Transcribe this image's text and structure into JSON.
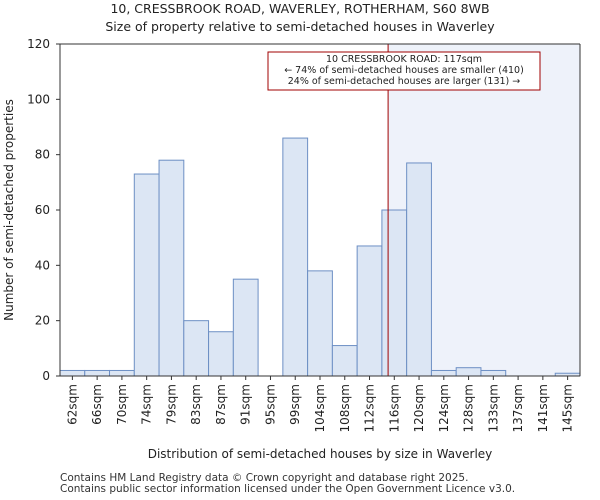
{
  "header": {
    "title": "10, CRESSBROOK ROAD, WAVERLEY, ROTHERHAM, S60 8WB",
    "subtitle": "Size of property relative to semi-detached houses in Waverley"
  },
  "footer": {
    "line1": "Contains HM Land Registry data © Crown copyright and database right 2025.",
    "line2": "Contains public sector information licensed under the Open Government Licence v3.0."
  },
  "chart_data": {
    "type": "bar",
    "title": "10, CRESSBROOK ROAD, WAVERLEY, ROTHERHAM, S60 8WB",
    "subtitle": "Size of property relative to semi-detached houses in Waverley",
    "xlabel": "Distribution of semi-detached houses by size in Waverley",
    "ylabel": "Number of semi-detached properties",
    "ylim": [
      0,
      120
    ],
    "yticks": [
      0,
      20,
      40,
      60,
      80,
      100,
      120
    ],
    "categories": [
      "62sqm",
      "66sqm",
      "70sqm",
      "74sqm",
      "79sqm",
      "83sqm",
      "87sqm",
      "91sqm",
      "95sqm",
      "99sqm",
      "104sqm",
      "108sqm",
      "112sqm",
      "116sqm",
      "120sqm",
      "124sqm",
      "128sqm",
      "133sqm",
      "137sqm",
      "141sqm",
      "145sqm"
    ],
    "values": [
      2,
      2,
      2,
      73,
      78,
      20,
      16,
      35,
      0,
      86,
      38,
      11,
      47,
      60,
      77,
      2,
      3,
      2,
      0,
      0,
      1
    ],
    "marker": {
      "value": 117,
      "value_label": "117sqm",
      "lines": [
        "10 CRESSBROOK ROAD: 117sqm",
        "← 74% of semi-detached houses are smaller (410)",
        "24% of semi-detached houses are larger (131) →"
      ]
    },
    "colors": {
      "bar_fill": "#dce6f4",
      "bar_stroke": "#6d8fc4",
      "marker_line": "#a00000",
      "highlight_bg": "#eef2fa",
      "axis": "#333333"
    },
    "grid": false,
    "legend": "none"
  }
}
